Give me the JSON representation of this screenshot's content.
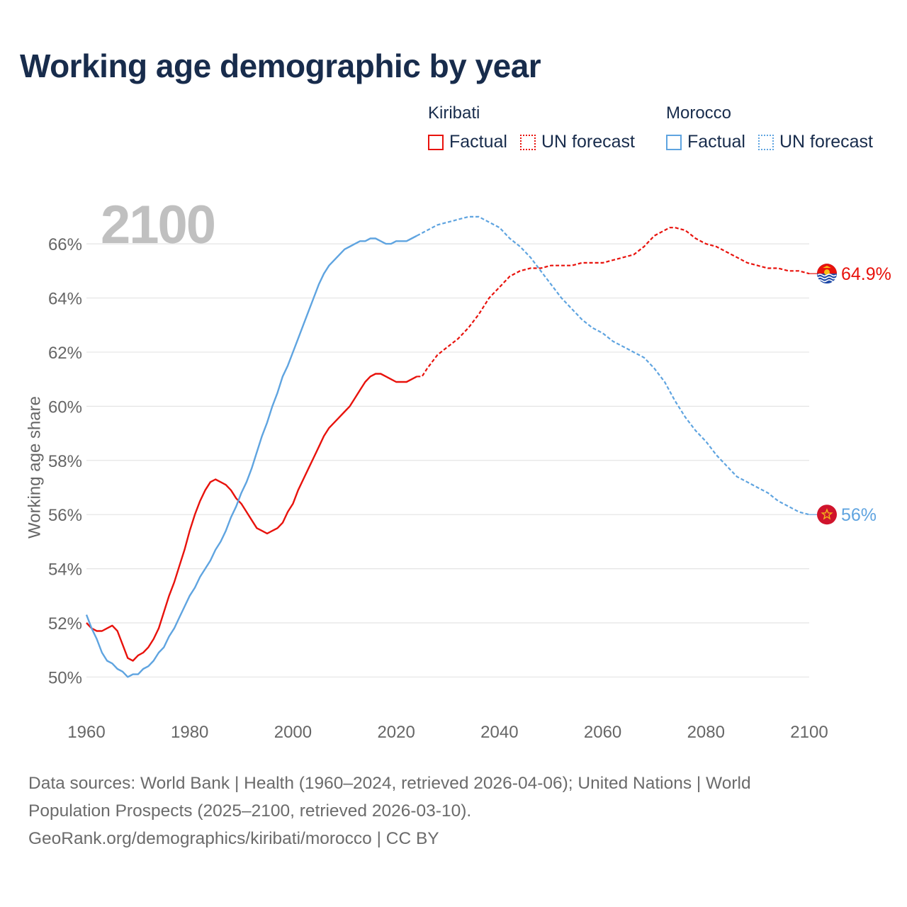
{
  "title": "Working age demographic by year",
  "legend": {
    "kiribati": {
      "name": "Kiribati",
      "factual_label": "Factual",
      "forecast_label": "UN forecast",
      "color": "#e8120c"
    },
    "morocco": {
      "name": "Morocco",
      "factual_label": "Factual",
      "forecast_label": "UN forecast",
      "color": "#5fa4e0"
    }
  },
  "sources": {
    "line1": "Data sources: World Bank | Health (1960–2024, retrieved 2026-04-06); United Nations | World",
    "line2": "Population Prospects (2025–2100, retrieved 2026-03-10).",
    "line3": "GeoRank.org/demographics/kiribati/morocco | CC BY"
  },
  "chart_data": {
    "type": "line",
    "year_label": "2100",
    "ylabel": "Working age share",
    "xlim": [
      1960,
      2100
    ],
    "ylim": [
      49.2,
      67.6
    ],
    "x_ticks": [
      1960,
      1980,
      2000,
      2020,
      2040,
      2060,
      2080,
      2100
    ],
    "y_ticks": [
      50,
      52,
      54,
      56,
      58,
      60,
      62,
      64,
      66
    ],
    "y_tick_labels": [
      "50%",
      "52%",
      "54%",
      "56%",
      "58%",
      "60%",
      "62%",
      "64%",
      "66%"
    ],
    "factual_range": [
      1960,
      2024
    ],
    "forecast_range": [
      2024,
      2100
    ],
    "series": [
      {
        "name": "Kiribati",
        "color": "#e8120c",
        "end_label": "64.9%",
        "flag_icon": "kiribati-flag-icon",
        "points": [
          [
            1960,
            52.0
          ],
          [
            1961,
            51.8
          ],
          [
            1962,
            51.7
          ],
          [
            1963,
            51.7
          ],
          [
            1964,
            51.8
          ],
          [
            1965,
            51.9
          ],
          [
            1966,
            51.7
          ],
          [
            1967,
            51.2
          ],
          [
            1968,
            50.7
          ],
          [
            1969,
            50.6
          ],
          [
            1970,
            50.8
          ],
          [
            1971,
            50.9
          ],
          [
            1972,
            51.1
          ],
          [
            1973,
            51.4
          ],
          [
            1974,
            51.8
          ],
          [
            1975,
            52.4
          ],
          [
            1976,
            53.0
          ],
          [
            1977,
            53.5
          ],
          [
            1978,
            54.1
          ],
          [
            1979,
            54.7
          ],
          [
            1980,
            55.4
          ],
          [
            1981,
            56.0
          ],
          [
            1982,
            56.5
          ],
          [
            1983,
            56.9
          ],
          [
            1984,
            57.2
          ],
          [
            1985,
            57.3
          ],
          [
            1986,
            57.2
          ],
          [
            1987,
            57.1
          ],
          [
            1988,
            56.9
          ],
          [
            1989,
            56.6
          ],
          [
            1990,
            56.4
          ],
          [
            1991,
            56.1
          ],
          [
            1992,
            55.8
          ],
          [
            1993,
            55.5
          ],
          [
            1994,
            55.4
          ],
          [
            1995,
            55.3
          ],
          [
            1996,
            55.4
          ],
          [
            1997,
            55.5
          ],
          [
            1998,
            55.7
          ],
          [
            1999,
            56.1
          ],
          [
            2000,
            56.4
          ],
          [
            2001,
            56.9
          ],
          [
            2002,
            57.3
          ],
          [
            2003,
            57.7
          ],
          [
            2004,
            58.1
          ],
          [
            2005,
            58.5
          ],
          [
            2006,
            58.9
          ],
          [
            2007,
            59.2
          ],
          [
            2008,
            59.4
          ],
          [
            2009,
            59.6
          ],
          [
            2010,
            59.8
          ],
          [
            2011,
            60.0
          ],
          [
            2012,
            60.3
          ],
          [
            2013,
            60.6
          ],
          [
            2014,
            60.9
          ],
          [
            2015,
            61.1
          ],
          [
            2016,
            61.2
          ],
          [
            2017,
            61.2
          ],
          [
            2018,
            61.1
          ],
          [
            2019,
            61.0
          ],
          [
            2020,
            60.9
          ],
          [
            2021,
            60.9
          ],
          [
            2022,
            60.9
          ],
          [
            2023,
            61.0
          ],
          [
            2024,
            61.1
          ],
          [
            2025,
            61.1
          ],
          [
            2026,
            61.4
          ],
          [
            2028,
            61.9
          ],
          [
            2030,
            62.2
          ],
          [
            2032,
            62.5
          ],
          [
            2034,
            62.9
          ],
          [
            2036,
            63.4
          ],
          [
            2038,
            64.0
          ],
          [
            2040,
            64.4
          ],
          [
            2042,
            64.8
          ],
          [
            2044,
            65.0
          ],
          [
            2046,
            65.1
          ],
          [
            2048,
            65.1
          ],
          [
            2050,
            65.2
          ],
          [
            2052,
            65.2
          ],
          [
            2054,
            65.2
          ],
          [
            2056,
            65.3
          ],
          [
            2058,
            65.3
          ],
          [
            2060,
            65.3
          ],
          [
            2062,
            65.4
          ],
          [
            2064,
            65.5
          ],
          [
            2066,
            65.6
          ],
          [
            2068,
            65.9
          ],
          [
            2070,
            66.3
          ],
          [
            2072,
            66.5
          ],
          [
            2073,
            66.6
          ],
          [
            2074,
            66.6
          ],
          [
            2076,
            66.5
          ],
          [
            2078,
            66.2
          ],
          [
            2080,
            66.0
          ],
          [
            2082,
            65.9
          ],
          [
            2084,
            65.7
          ],
          [
            2086,
            65.5
          ],
          [
            2088,
            65.3
          ],
          [
            2090,
            65.2
          ],
          [
            2092,
            65.1
          ],
          [
            2094,
            65.1
          ],
          [
            2096,
            65.0
          ],
          [
            2098,
            65.0
          ],
          [
            2100,
            64.9
          ]
        ]
      },
      {
        "name": "Morocco",
        "color": "#5fa4e0",
        "end_label": "56%",
        "flag_icon": "morocco-flag-icon",
        "points": [
          [
            1960,
            52.3
          ],
          [
            1961,
            51.8
          ],
          [
            1962,
            51.4
          ],
          [
            1963,
            50.9
          ],
          [
            1964,
            50.6
          ],
          [
            1965,
            50.5
          ],
          [
            1966,
            50.3
          ],
          [
            1967,
            50.2
          ],
          [
            1968,
            50.0
          ],
          [
            1969,
            50.1
          ],
          [
            1970,
            50.1
          ],
          [
            1971,
            50.3
          ],
          [
            1972,
            50.4
          ],
          [
            1973,
            50.6
          ],
          [
            1974,
            50.9
          ],
          [
            1975,
            51.1
          ],
          [
            1976,
            51.5
          ],
          [
            1977,
            51.8
          ],
          [
            1978,
            52.2
          ],
          [
            1979,
            52.6
          ],
          [
            1980,
            53.0
          ],
          [
            1981,
            53.3
          ],
          [
            1982,
            53.7
          ],
          [
            1983,
            54.0
          ],
          [
            1984,
            54.3
          ],
          [
            1985,
            54.7
          ],
          [
            1986,
            55.0
          ],
          [
            1987,
            55.4
          ],
          [
            1988,
            55.9
          ],
          [
            1989,
            56.3
          ],
          [
            1990,
            56.8
          ],
          [
            1991,
            57.2
          ],
          [
            1992,
            57.7
          ],
          [
            1993,
            58.3
          ],
          [
            1994,
            58.9
          ],
          [
            1995,
            59.4
          ],
          [
            1996,
            60.0
          ],
          [
            1997,
            60.5
          ],
          [
            1998,
            61.1
          ],
          [
            1999,
            61.5
          ],
          [
            2000,
            62.0
          ],
          [
            2001,
            62.5
          ],
          [
            2002,
            63.0
          ],
          [
            2003,
            63.5
          ],
          [
            2004,
            64.0
          ],
          [
            2005,
            64.5
          ],
          [
            2006,
            64.9
          ],
          [
            2007,
            65.2
          ],
          [
            2008,
            65.4
          ],
          [
            2009,
            65.6
          ],
          [
            2010,
            65.8
          ],
          [
            2011,
            65.9
          ],
          [
            2012,
            66.0
          ],
          [
            2013,
            66.1
          ],
          [
            2014,
            66.1
          ],
          [
            2015,
            66.2
          ],
          [
            2016,
            66.2
          ],
          [
            2017,
            66.1
          ],
          [
            2018,
            66.0
          ],
          [
            2019,
            66.0
          ],
          [
            2020,
            66.1
          ],
          [
            2021,
            66.1
          ],
          [
            2022,
            66.1
          ],
          [
            2023,
            66.2
          ],
          [
            2024,
            66.3
          ],
          [
            2026,
            66.5
          ],
          [
            2028,
            66.7
          ],
          [
            2030,
            66.8
          ],
          [
            2032,
            66.9
          ],
          [
            2034,
            67.0
          ],
          [
            2036,
            67.0
          ],
          [
            2038,
            66.8
          ],
          [
            2040,
            66.6
          ],
          [
            2042,
            66.2
          ],
          [
            2044,
            65.9
          ],
          [
            2046,
            65.5
          ],
          [
            2048,
            65.0
          ],
          [
            2050,
            64.5
          ],
          [
            2052,
            64.0
          ],
          [
            2054,
            63.6
          ],
          [
            2056,
            63.2
          ],
          [
            2058,
            62.9
          ],
          [
            2060,
            62.7
          ],
          [
            2062,
            62.4
          ],
          [
            2064,
            62.2
          ],
          [
            2066,
            62.0
          ],
          [
            2068,
            61.8
          ],
          [
            2070,
            61.4
          ],
          [
            2072,
            60.9
          ],
          [
            2074,
            60.2
          ],
          [
            2076,
            59.6
          ],
          [
            2078,
            59.1
          ],
          [
            2080,
            58.7
          ],
          [
            2082,
            58.2
          ],
          [
            2084,
            57.8
          ],
          [
            2086,
            57.4
          ],
          [
            2088,
            57.2
          ],
          [
            2090,
            57.0
          ],
          [
            2092,
            56.8
          ],
          [
            2094,
            56.5
          ],
          [
            2096,
            56.3
          ],
          [
            2098,
            56.1
          ],
          [
            2100,
            56.0
          ]
        ]
      }
    ]
  }
}
